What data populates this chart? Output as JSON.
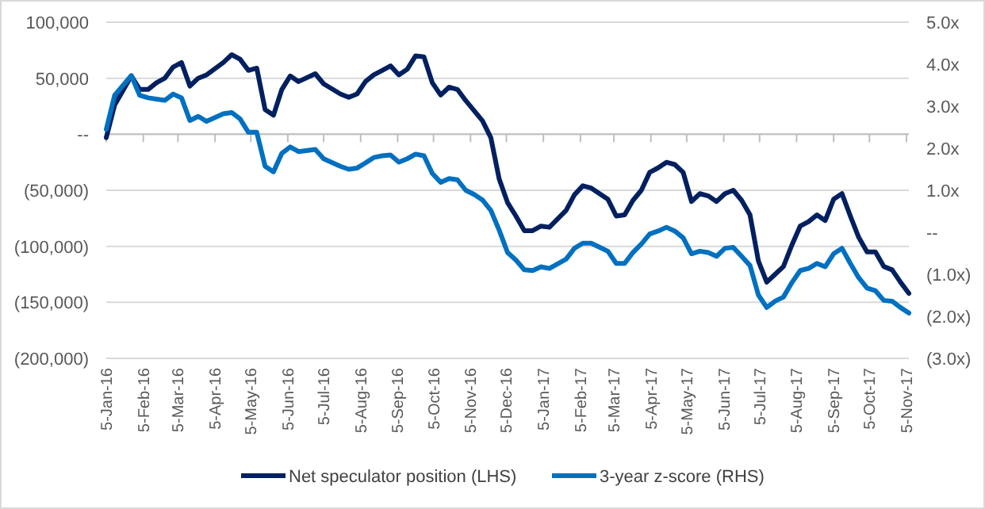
{
  "chart_data": {
    "type": "line",
    "x": [
      "2016-01-05",
      "2016-01-12",
      "2016-01-26",
      "2016-02-02",
      "2016-02-09",
      "2016-02-16",
      "2016-02-23",
      "2016-03-01",
      "2016-03-08",
      "2016-03-15",
      "2016-03-22",
      "2016-03-29",
      "2016-04-12",
      "2016-04-19",
      "2016-04-26",
      "2016-05-03",
      "2016-05-10",
      "2016-05-17",
      "2016-05-24",
      "2016-05-31",
      "2016-06-07",
      "2016-06-14",
      "2016-06-28",
      "2016-07-05",
      "2016-07-19",
      "2016-07-26",
      "2016-08-02",
      "2016-08-09",
      "2016-08-16",
      "2016-08-23",
      "2016-08-30",
      "2016-09-06",
      "2016-09-13",
      "2016-09-20",
      "2016-09-27",
      "2016-10-04",
      "2016-10-11",
      "2016-10-18",
      "2016-10-25",
      "2016-11-01",
      "2016-11-08",
      "2016-11-15",
      "2016-11-22",
      "2016-11-29",
      "2016-12-06",
      "2016-12-13",
      "2016-12-20",
      "2016-12-27",
      "2017-01-03",
      "2017-01-10",
      "2017-01-24",
      "2017-01-31",
      "2017-02-07",
      "2017-02-14",
      "2017-02-28",
      "2017-03-07",
      "2017-03-14",
      "2017-03-21",
      "2017-03-28",
      "2017-04-04",
      "2017-04-11",
      "2017-04-18",
      "2017-04-25",
      "2017-05-02",
      "2017-05-09",
      "2017-05-16",
      "2017-05-23",
      "2017-05-30",
      "2017-06-06",
      "2017-06-13",
      "2017-06-20",
      "2017-06-27",
      "2017-07-04",
      "2017-07-11",
      "2017-07-18",
      "2017-07-25",
      "2017-08-01",
      "2017-08-08",
      "2017-08-15",
      "2017-08-22",
      "2017-08-29",
      "2017-09-05",
      "2017-09-12",
      "2017-09-19",
      "2017-09-26",
      "2017-10-03",
      "2017-10-10",
      "2017-10-17",
      "2017-10-24",
      "2017-10-31",
      "2017-11-07"
    ],
    "series": [
      {
        "name": "Net speculator position (LHS)",
        "color": "#002060",
        "values": [
          -3000,
          26000,
          52000,
          40000,
          40000,
          46000,
          50000,
          60000,
          64000,
          43000,
          50000,
          53000,
          64000,
          71000,
          67000,
          57000,
          59000,
          22000,
          17000,
          40000,
          52000,
          47000,
          54000,
          45000,
          36000,
          33000,
          36000,
          47000,
          53000,
          57000,
          61000,
          53000,
          58000,
          70000,
          69000,
          46000,
          35000,
          42000,
          40000,
          30000,
          21000,
          12000,
          -3000,
          -40000,
          -61000,
          -73000,
          -86000,
          -86000,
          -82000,
          -83000,
          -68000,
          -54000,
          -46000,
          -48000,
          -58000,
          -73000,
          -72000,
          -59000,
          -50000,
          -34000,
          -30000,
          -25000,
          -27000,
          -34000,
          -60000,
          -53000,
          -55000,
          -60000,
          -53000,
          -50000,
          -59000,
          -72000,
          -113000,
          -132000,
          -125000,
          -118000,
          -99000,
          -82000,
          -78000,
          -72000,
          -77000,
          -58000,
          -53000,
          -73000,
          -92000,
          -105000,
          -105000,
          -118000,
          -121000,
          -132000,
          -142000
        ]
      },
      {
        "name": "3-year z-score (RHS)",
        "color": "#0070c0",
        "axis": "y2",
        "values": [
          2.45,
          3.26,
          3.73,
          3.26,
          3.2,
          3.17,
          3.14,
          3.29,
          3.2,
          2.66,
          2.76,
          2.64,
          2.82,
          2.85,
          2.7,
          2.38,
          2.38,
          1.57,
          1.44,
          1.88,
          2.03,
          1.92,
          1.97,
          1.75,
          1.57,
          1.5,
          1.53,
          1.65,
          1.78,
          1.82,
          1.84,
          1.67,
          1.75,
          1.86,
          1.82,
          1.4,
          1.19,
          1.28,
          1.25,
          1.0,
          0.9,
          0.77,
          0.52,
          0.05,
          -0.48,
          -0.66,
          -0.89,
          -0.91,
          -0.82,
          -0.86,
          -0.64,
          -0.38,
          -0.26,
          -0.26,
          -0.45,
          -0.74,
          -0.74,
          -0.48,
          -0.28,
          -0.04,
          0.03,
          0.12,
          0.03,
          -0.13,
          -0.51,
          -0.45,
          -0.48,
          -0.57,
          -0.38,
          -0.36,
          -0.57,
          -0.79,
          -1.49,
          -1.79,
          -1.64,
          -1.54,
          -1.2,
          -0.91,
          -0.86,
          -0.74,
          -0.82,
          -0.51,
          -0.38,
          -0.74,
          -1.08,
          -1.33,
          -1.39,
          -1.62,
          -1.64,
          -1.79,
          -1.92
        ]
      }
    ],
    "xlim": [
      "2016-01-05",
      "2017-11-07"
    ],
    "xticks": [
      {
        "value": "2016-01-05",
        "label": "5-Jan-16"
      },
      {
        "value": "2016-02-05",
        "label": "5-Feb-16"
      },
      {
        "value": "2016-03-05",
        "label": "5-Mar-16"
      },
      {
        "value": "2016-04-05",
        "label": "5-Apr-16"
      },
      {
        "value": "2016-05-05",
        "label": "5-May-16"
      },
      {
        "value": "2016-06-05",
        "label": "5-Jun-16"
      },
      {
        "value": "2016-07-05",
        "label": "5-Jul-16"
      },
      {
        "value": "2016-08-05",
        "label": "5-Aug-16"
      },
      {
        "value": "2016-09-05",
        "label": "5-Sep-16"
      },
      {
        "value": "2016-10-05",
        "label": "5-Oct-16"
      },
      {
        "value": "2016-11-05",
        "label": "5-Nov-16"
      },
      {
        "value": "2016-12-05",
        "label": "5-Dec-16"
      },
      {
        "value": "2017-01-05",
        "label": "5-Jan-17"
      },
      {
        "value": "2017-02-05",
        "label": "5-Feb-17"
      },
      {
        "value": "2017-03-05",
        "label": "5-Mar-17"
      },
      {
        "value": "2017-04-05",
        "label": "5-Apr-17"
      },
      {
        "value": "2017-05-05",
        "label": "5-May-17"
      },
      {
        "value": "2017-06-05",
        "label": "5-Jun-17"
      },
      {
        "value": "2017-07-05",
        "label": "5-Jul-17"
      },
      {
        "value": "2017-08-05",
        "label": "5-Aug-17"
      },
      {
        "value": "2017-09-05",
        "label": "5-Sep-17"
      },
      {
        "value": "2017-10-05",
        "label": "5-Oct-17"
      },
      {
        "value": "2017-11-05",
        "label": "5-Nov-17"
      }
    ],
    "ylim": [
      -200000,
      100000
    ],
    "yticks": [
      {
        "value": 100000,
        "label": "100,000"
      },
      {
        "value": 50000,
        "label": "50,000"
      },
      {
        "value": 0,
        "label": "--"
      },
      {
        "value": -50000,
        "label": "(50,000)"
      },
      {
        "value": -100000,
        "label": "(100,000)"
      },
      {
        "value": -150000,
        "label": "(150,000)"
      },
      {
        "value": -200000,
        "label": "(200,000)"
      }
    ],
    "y2lim": [
      -3,
      5
    ],
    "y2ticks": [
      {
        "value": 5,
        "label": "5.0x"
      },
      {
        "value": 4,
        "label": "4.0x"
      },
      {
        "value": 3,
        "label": "3.0x"
      },
      {
        "value": 2,
        "label": "2.0x"
      },
      {
        "value": 1,
        "label": "1.0x"
      },
      {
        "value": 0,
        "label": "--"
      },
      {
        "value": -1,
        "label": "(1.0x)"
      },
      {
        "value": -2,
        "label": "(2.0x)"
      },
      {
        "value": -3,
        "label": "(3.0x)"
      }
    ],
    "grid": "y",
    "legend": "bottom",
    "line_style": "solid"
  }
}
